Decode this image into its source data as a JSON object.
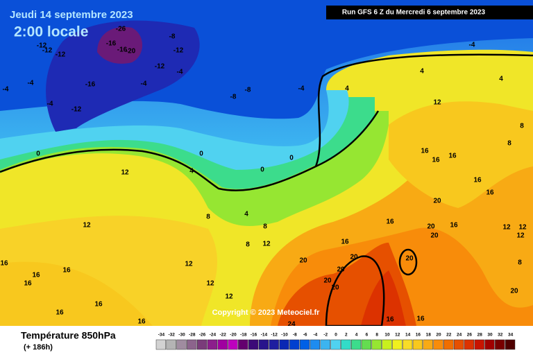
{
  "header": {
    "date": "Jeudi 14 septembre 2023",
    "time": "2:00 locale",
    "run": "Run GFS 6 Z du Mercredi 6 septembre 2023"
  },
  "footer": {
    "title": "Température 850hPa",
    "subtitle": "(+ 186h)",
    "copyright": "Copyright © 2023 Meteociel.fr"
  },
  "legend": {
    "values": [
      -34,
      -32,
      -30,
      -28,
      -26,
      -24,
      -22,
      -20,
      -18,
      -16,
      -14,
      -12,
      -10,
      -8,
      -6,
      -4,
      -2,
      0,
      2,
      4,
      6,
      8,
      10,
      12,
      14,
      16,
      18,
      20,
      22,
      24,
      26,
      28,
      30,
      32,
      34
    ],
    "colors": [
      "#d2d2d2",
      "#b4b4b4",
      "#a08ca0",
      "#8c648c",
      "#7a3c7a",
      "#8c1e8c",
      "#a000a0",
      "#be00be",
      "#64006e",
      "#3c0a78",
      "#28148c",
      "#1e1ea0",
      "#0a28b4",
      "#0040d0",
      "#0060e6",
      "#1e8cf0",
      "#3cb4f0",
      "#50d2f0",
      "#32dcc8",
      "#3cdc8c",
      "#64dc50",
      "#96e632",
      "#c8f01e",
      "#f0f01e",
      "#f8dc28",
      "#f8c81e",
      "#f8aa14",
      "#f88c0a",
      "#f06e00",
      "#e65000",
      "#dc3200",
      "#c81400",
      "#a00000",
      "#780000",
      "#500000"
    ]
  },
  "contour_labels": [
    -12,
    -12,
    -12,
    -16,
    -16,
    -20,
    -26,
    -8,
    -12,
    -12,
    -4,
    -4,
    -16,
    -12,
    -4,
    -4,
    -4,
    -8,
    -8,
    -4,
    -4,
    0,
    0,
    0,
    0,
    4,
    4,
    4,
    4,
    4,
    12,
    12,
    8,
    8,
    8,
    12,
    12,
    12,
    12,
    12,
    8,
    8,
    16,
    16,
    16,
    16,
    16,
    16,
    16,
    20,
    20,
    20,
    16,
    20,
    20,
    20,
    20,
    20,
    20,
    16,
    16,
    16,
    16,
    16,
    16,
    16,
    12,
    12,
    12,
    8,
    20,
    16,
    16,
    24
  ]
}
